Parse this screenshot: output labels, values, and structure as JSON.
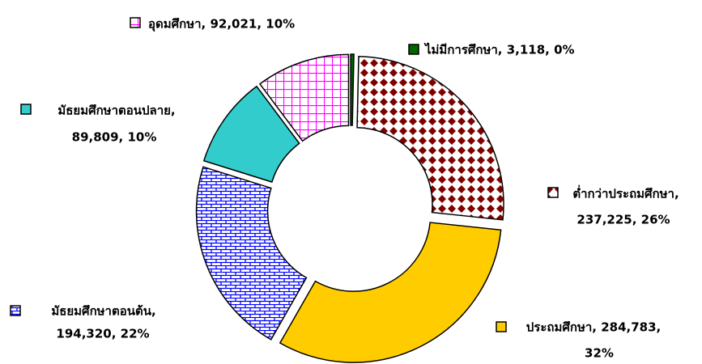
{
  "chart_data": {
    "type": "donut",
    "values": [
      3118,
      237225,
      284783,
      194320,
      89809,
      92021
    ],
    "value_labels": [
      [
        "ไม่มีการศึกษา, 3,118, 0%"
      ],
      [
        "ต่ำกว่าประถมศึกษา,",
        "237,225, 26%"
      ],
      [
        "ประถมศึกษา, 284,783,",
        "32%"
      ],
      [
        "มัธยมศึกษาตอนต้น,",
        "194,320, 22%"
      ],
      [
        "มัธยมศึกษาตอนปลาย,",
        "89,809, 10%"
      ],
      [
        "อุดมศึกษา, 92,021, 10%"
      ]
    ],
    "colors": [
      "#006600",
      "#800000",
      "#ffcc00",
      "#0000ff",
      "#33cccc",
      "#ff00ff"
    ],
    "patterns": [
      "solid",
      "diamond",
      "solid",
      "brick",
      "solid",
      "grid"
    ],
    "exploded": true
  }
}
